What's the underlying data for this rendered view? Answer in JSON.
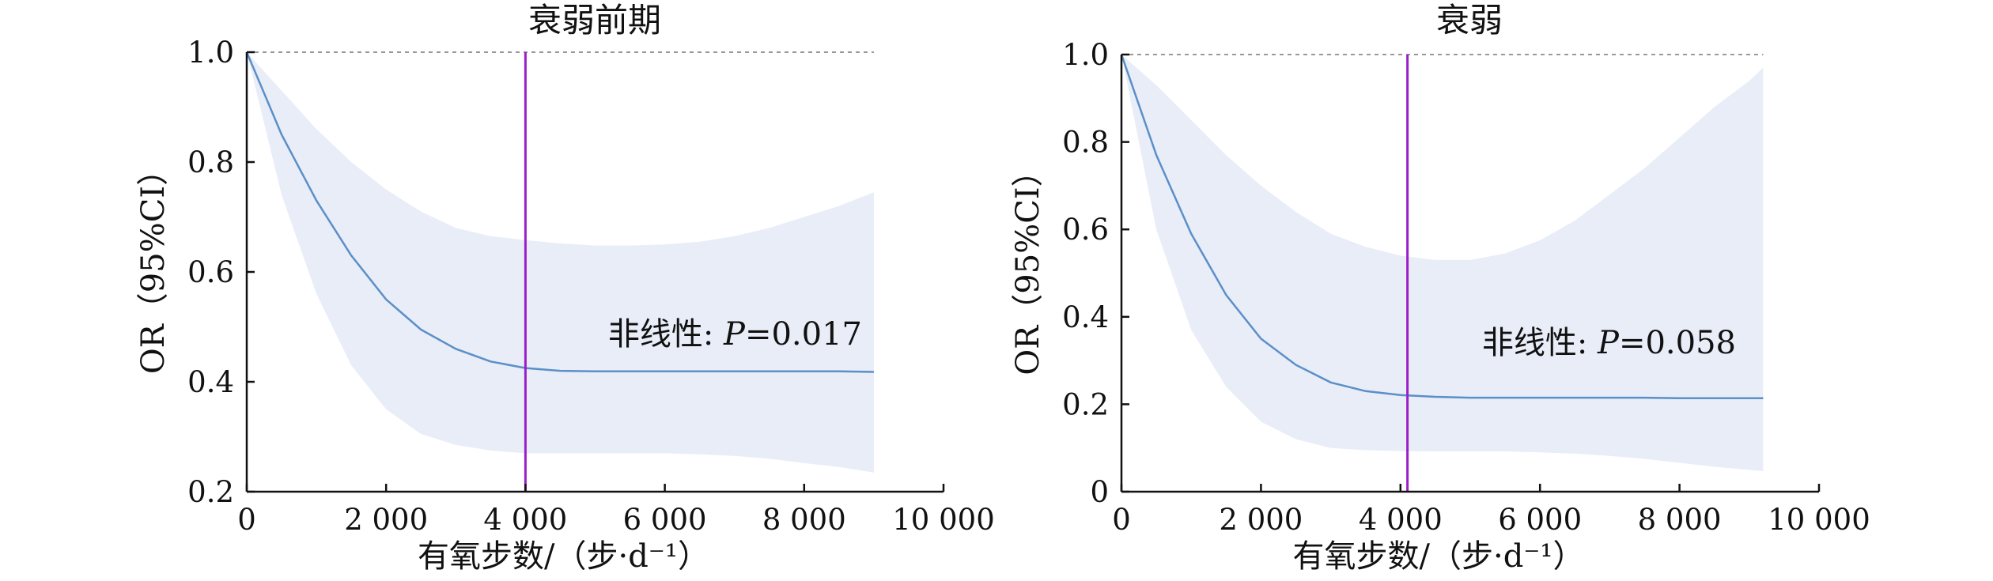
{
  "chart_data": [
    {
      "type": "line",
      "title": "衰弱前期",
      "xlabel": "有氧步数/（步·d⁻¹）",
      "ylabel": "OR（95%CI）",
      "xlim": [
        0,
        10000
      ],
      "ylim": [
        0.2,
        1.0
      ],
      "xticks": [
        "0",
        "2 000",
        "4 000",
        "6 000",
        "8 000",
        "10 000"
      ],
      "yticks": [
        "0.2",
        "0.4",
        "0.6",
        "0.8",
        "1.0"
      ],
      "xtick_values": [
        0,
        2000,
        4000,
        6000,
        8000,
        10000
      ],
      "ytick_values": [
        0.2,
        0.4,
        0.6,
        0.8,
        1.0
      ],
      "reference_line_y": 1.0,
      "vertical_line_x": 4000,
      "annotation": {
        "prefix": "非线性: ",
        "italic": "P",
        "suffix": "=0.017"
      },
      "x": [
        0,
        500,
        1000,
        1500,
        2000,
        2500,
        3000,
        3500,
        4000,
        4500,
        5000,
        5500,
        6000,
        6500,
        7000,
        7500,
        8000,
        8500,
        9000
      ],
      "series": [
        {
          "values": [
            1.0,
            0.85,
            0.73,
            0.63,
            0.55,
            0.495,
            0.46,
            0.437,
            0.425,
            0.42,
            0.419,
            0.419,
            0.419,
            0.419,
            0.419,
            0.419,
            0.419,
            0.419,
            0.418
          ]
        }
      ],
      "ci_upper": [
        1.0,
        0.93,
        0.86,
        0.8,
        0.75,
        0.71,
        0.68,
        0.665,
        0.658,
        0.652,
        0.648,
        0.648,
        0.65,
        0.655,
        0.665,
        0.68,
        0.7,
        0.72,
        0.745
      ],
      "ci_lower": [
        1.0,
        0.74,
        0.56,
        0.43,
        0.35,
        0.305,
        0.285,
        0.275,
        0.27,
        0.27,
        0.27,
        0.27,
        0.27,
        0.268,
        0.265,
        0.26,
        0.252,
        0.245,
        0.235
      ],
      "colors": {
        "line": "#5b8fc7",
        "band": "#e8edf8",
        "vline": "#9b1fc9",
        "ref": "#999999"
      }
    },
    {
      "type": "line",
      "title": "衰弱",
      "xlabel": "有氧步数/（步·d⁻¹）",
      "ylabel": "OR（95%CI）",
      "xlim": [
        0,
        10000
      ],
      "ylim": [
        0,
        1.0
      ],
      "xticks": [
        "0",
        "2 000",
        "4 000",
        "6 000",
        "8 000",
        "10 000"
      ],
      "yticks": [
        "0",
        "0.2",
        "0.4",
        "0.6",
        "0.8",
        "1.0"
      ],
      "xtick_values": [
        0,
        2000,
        4000,
        6000,
        8000,
        10000
      ],
      "ytick_values": [
        0,
        0.2,
        0.4,
        0.6,
        0.8,
        1.0
      ],
      "reference_line_y": 1.0,
      "vertical_line_x": 4100,
      "annotation": {
        "prefix": "非线性: ",
        "italic": "P",
        "suffix": "=0.058"
      },
      "x": [
        0,
        500,
        1000,
        1500,
        2000,
        2500,
        3000,
        3500,
        4000,
        4500,
        5000,
        5500,
        6000,
        6500,
        7000,
        7500,
        8000,
        8500,
        9000,
        9200
      ],
      "series": [
        {
          "values": [
            1.0,
            0.77,
            0.59,
            0.45,
            0.35,
            0.29,
            0.25,
            0.23,
            0.221,
            0.217,
            0.215,
            0.215,
            0.215,
            0.215,
            0.215,
            0.215,
            0.214,
            0.214,
            0.214,
            0.214
          ]
        }
      ],
      "ci_upper": [
        1.0,
        0.93,
        0.85,
        0.77,
        0.7,
        0.64,
        0.59,
        0.56,
        0.54,
        0.53,
        0.53,
        0.545,
        0.575,
        0.62,
        0.68,
        0.74,
        0.81,
        0.88,
        0.94,
        0.97
      ],
      "ci_lower": [
        1.0,
        0.6,
        0.37,
        0.24,
        0.16,
        0.12,
        0.1,
        0.095,
        0.093,
        0.092,
        0.092,
        0.092,
        0.09,
        0.087,
        0.082,
        0.075,
        0.066,
        0.057,
        0.05,
        0.047
      ],
      "colors": {
        "line": "#5b8fc7",
        "band": "#e8edf8",
        "vline": "#9b1fc9",
        "ref": "#999999"
      }
    }
  ]
}
